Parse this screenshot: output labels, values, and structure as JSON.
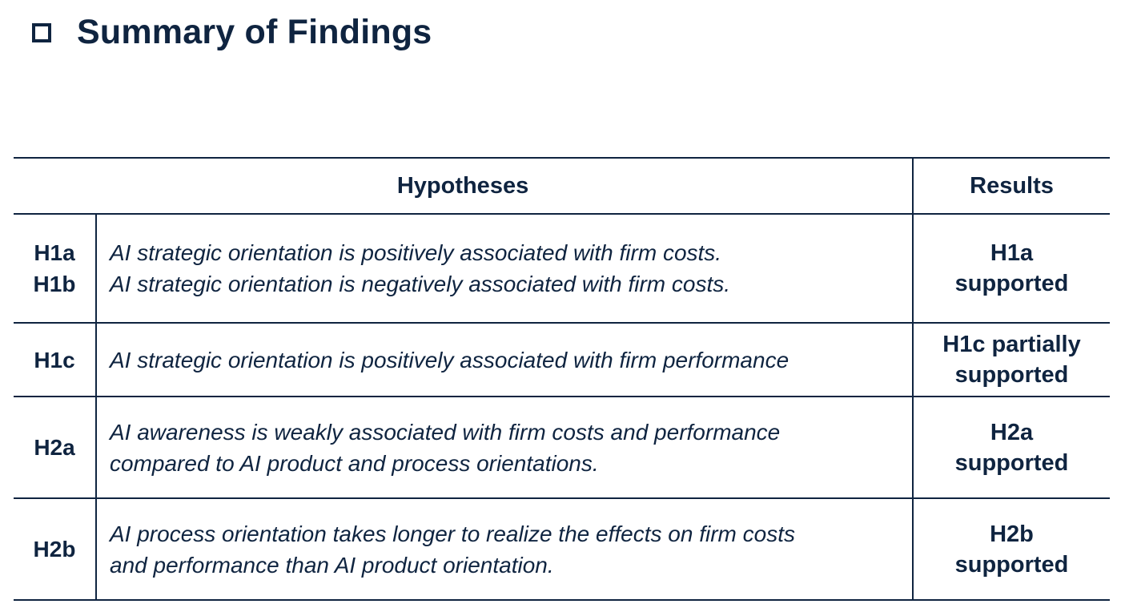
{
  "title": "Summary of Findings",
  "icons": {
    "title_bullet": "checkbox-icon"
  },
  "colors": {
    "text": "#0f2440",
    "rule": "#0f2440",
    "background": "#ffffff"
  },
  "table": {
    "headers": {
      "hypotheses": "Hypotheses",
      "results": "Results"
    },
    "rows": [
      {
        "ids": [
          "H1a",
          "H1b"
        ],
        "statements": [
          "AI strategic orientation is positively associated with firm costs.",
          "AI strategic orientation is negatively associated with firm costs."
        ],
        "result": [
          "H1a",
          "supported"
        ]
      },
      {
        "ids": [
          "H1c"
        ],
        "statements": [
          "AI strategic orientation is positively associated with firm performance"
        ],
        "result": [
          "H1c partially",
          "supported"
        ]
      },
      {
        "ids": [
          "H2a"
        ],
        "statements": [
          "AI awareness is weakly associated with firm costs and performance",
          "compared to AI product and process orientations."
        ],
        "result": [
          "H2a",
          "supported"
        ]
      },
      {
        "ids": [
          "H2b"
        ],
        "statements": [
          "AI process orientation takes longer to realize the effects on firm costs",
          "and performance than AI product orientation."
        ],
        "result": [
          "H2b",
          "supported"
        ]
      }
    ]
  }
}
